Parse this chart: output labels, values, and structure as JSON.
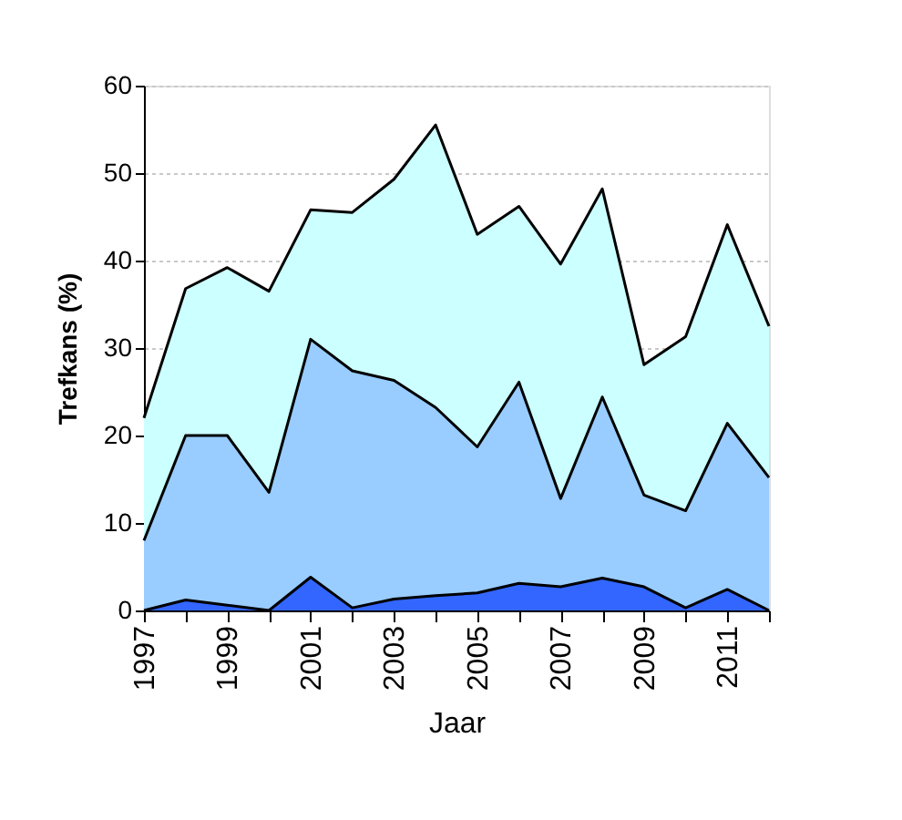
{
  "chart_data": {
    "type": "area",
    "xlabel": "Jaar",
    "ylabel": "Trefkans (%)",
    "x": [
      1997,
      1998,
      1999,
      2000,
      2001,
      2002,
      2003,
      2004,
      2005,
      2006,
      2007,
      2008,
      2009,
      2010,
      2011,
      2012
    ],
    "series": [
      {
        "color": "#ccffff",
        "values": [
          22,
          36.8,
          39.2,
          36.5,
          45.8,
          45.5,
          49.3,
          55.5,
          43,
          46.2,
          39.6,
          48.2,
          28.1,
          31.3,
          44.1,
          32.5
        ]
      },
      {
        "color": "#99ccff",
        "values": [
          8,
          20,
          20,
          13.5,
          31,
          27.4,
          26.3,
          23.2,
          18.7,
          26.1,
          12.8,
          24.4,
          13.2,
          11.4,
          21.4,
          15.2
        ]
      },
      {
        "color": "#3366ff",
        "values": [
          0,
          1.2,
          0.6,
          0,
          3.8,
          0.3,
          1.3,
          1.7,
          2.0,
          3.1,
          2.7,
          3.7,
          2.7,
          0.3,
          2.4,
          0
        ]
      }
    ],
    "xlim": [
      1997,
      2012
    ],
    "xticks": [
      1997,
      {
        "value": 1998,
        "label": null
      },
      1999,
      {
        "value": 2000,
        "label": null
      },
      2001,
      {
        "value": 2002,
        "label": null
      },
      2003,
      {
        "value": 2004,
        "label": null
      },
      2005,
      {
        "value": 2006,
        "label": null
      },
      2007,
      {
        "value": 2008,
        "label": null
      },
      2009,
      {
        "value": 2010,
        "label": null
      },
      2011,
      {
        "value": 2012,
        "label": null
      }
    ],
    "ylim": [
      0,
      60
    ],
    "yticks": [
      0,
      10,
      20,
      30,
      40,
      50,
      60
    ],
    "grid": "y"
  }
}
